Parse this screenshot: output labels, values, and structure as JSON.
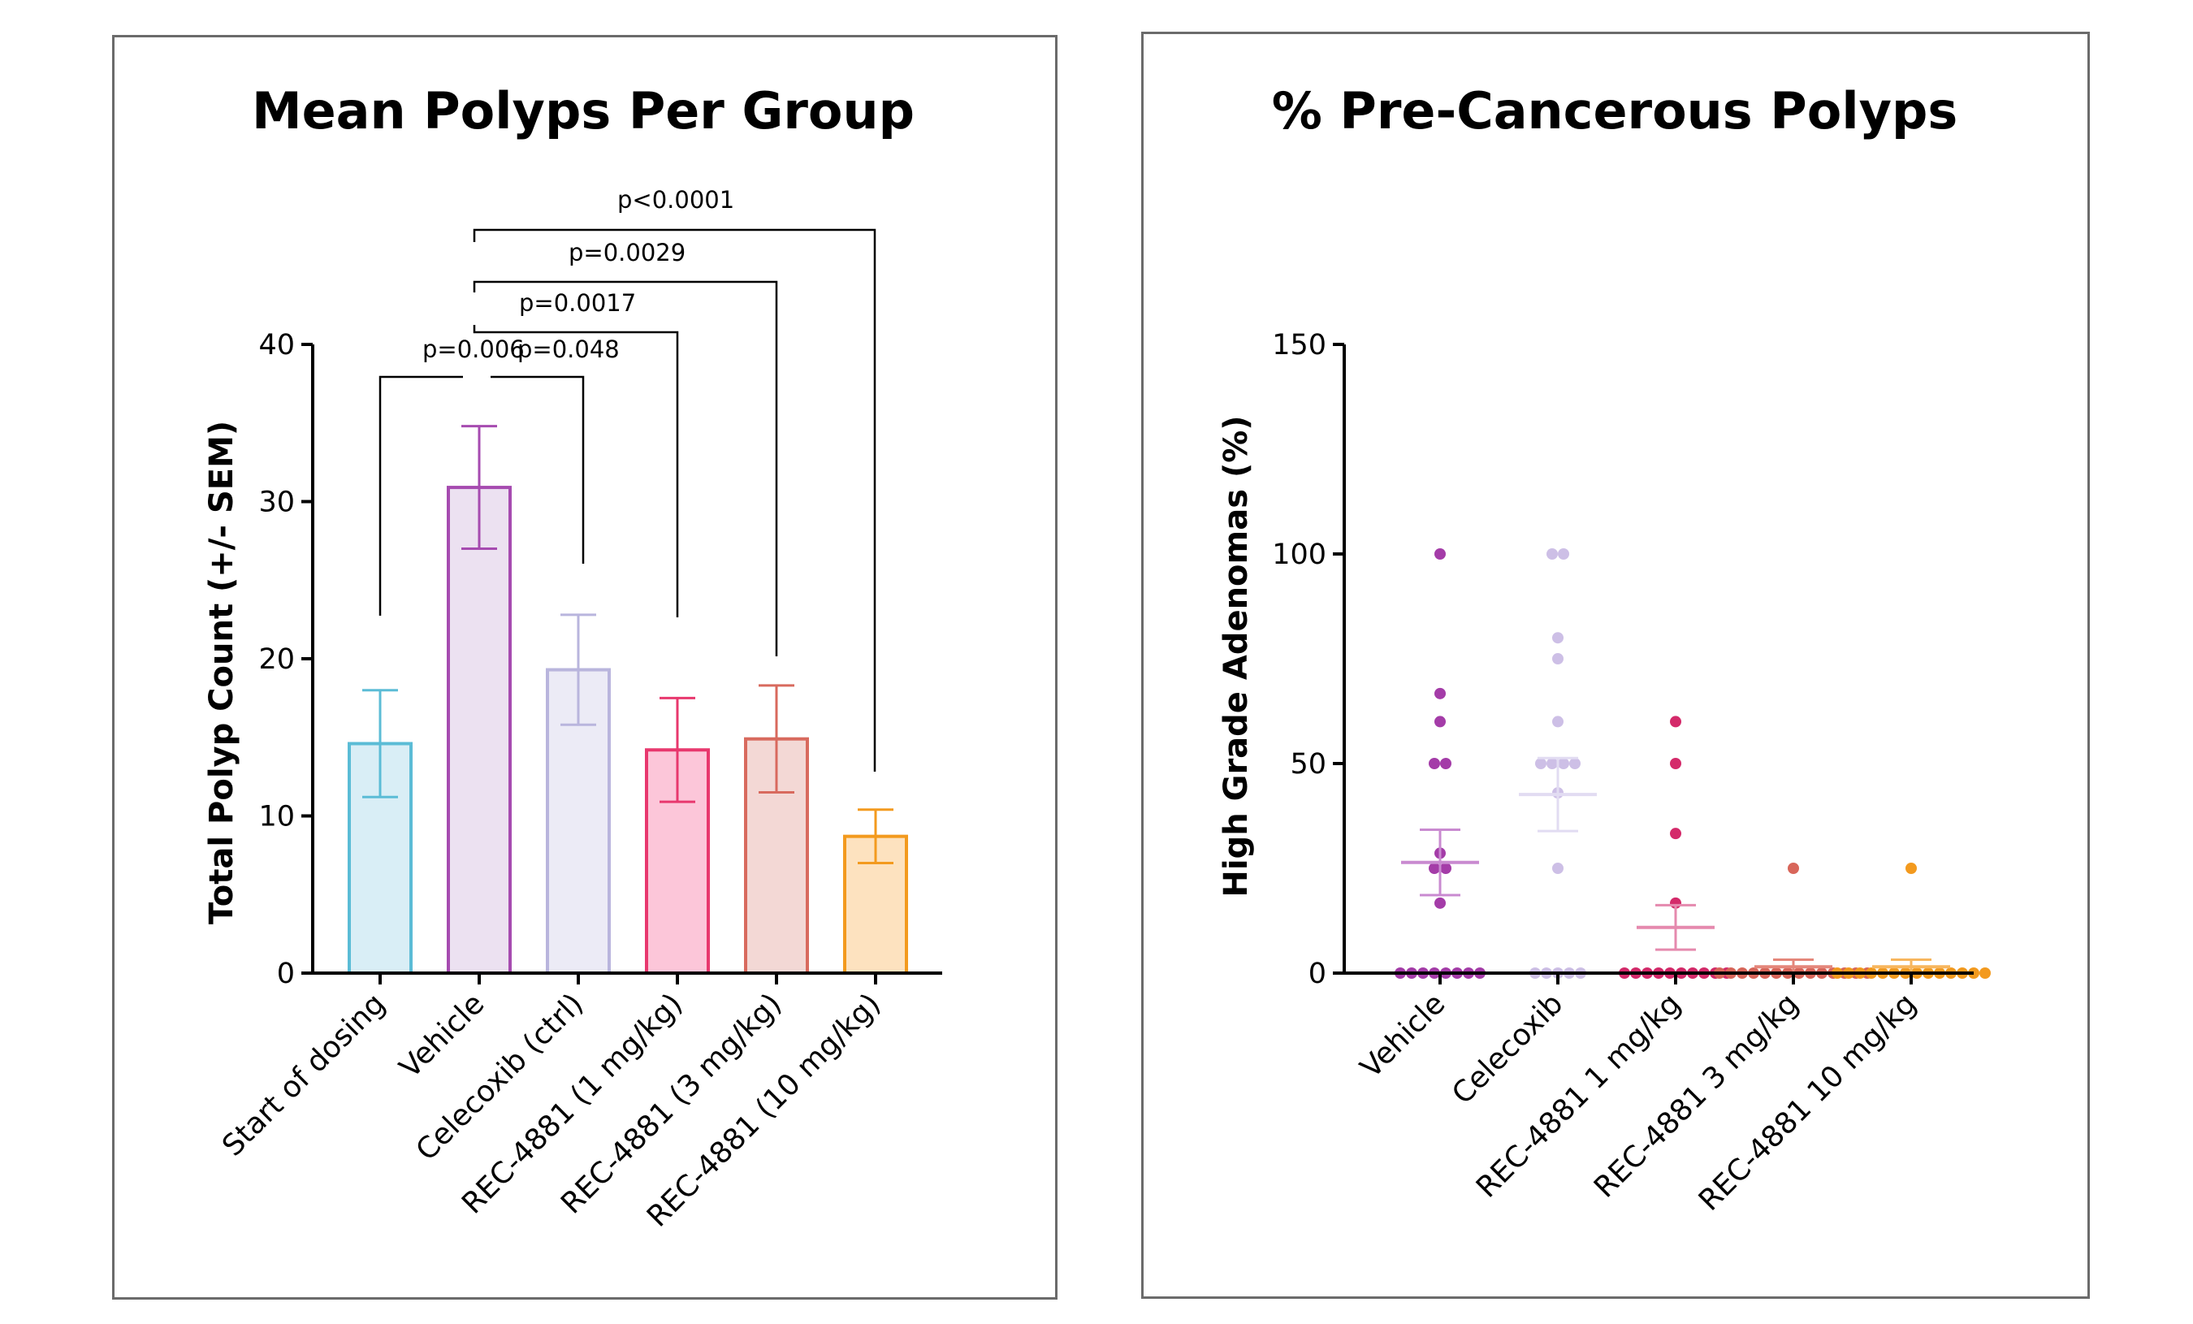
{
  "chart_data": [
    {
      "type": "bar",
      "title": "Mean Polyps Per Group",
      "xlabel": "",
      "ylabel": "Total Polyp Count (+/- SEM)",
      "ylim": [
        0,
        40
      ],
      "yticks": [
        0,
        10,
        20,
        30,
        40
      ],
      "categories": [
        "Start of dosing",
        "Vehicle",
        "Celecoxib (ctrl)",
        "REC-4881 (1 mg/kg)",
        "REC-4881 (3 mg/kg)",
        "REC-4881 (10 mg/kg)"
      ],
      "values": [
        14.6,
        30.9,
        19.3,
        14.2,
        14.9,
        8.7
      ],
      "sem": [
        3.4,
        3.9,
        3.5,
        3.3,
        3.4,
        1.7
      ],
      "colors": [
        "#5bbcd6",
        "#a64bb0",
        "#b9b5dd",
        "#e8386e",
        "#d86a5e",
        "#f39a1e"
      ],
      "fills": [
        "#d9eef6",
        "#ece1f1",
        "#ecebf6",
        "#fcc6d9",
        "#f3d8d5",
        "#fde2bf"
      ],
      "comparisons": [
        {
          "from": 0,
          "to": 1,
          "label": "p=0.006"
        },
        {
          "from": 1,
          "to": 2,
          "label": "p=0.048"
        },
        {
          "from": 1,
          "to": 3,
          "label": "p=0.0017"
        },
        {
          "from": 1,
          "to": 4,
          "label": "p=0.0029"
        },
        {
          "from": 1,
          "to": 5,
          "label": "p<0.0001"
        }
      ]
    },
    {
      "type": "scatter",
      "title": "% Pre-Cancerous Polyps",
      "xlabel": "",
      "ylabel": "High Grade Adenomas (%)",
      "ylim": [
        0,
        150
      ],
      "yticks": [
        0,
        50,
        100,
        150
      ],
      "categories": [
        "Vehicle",
        "Celecoxib",
        "REC-4881 1 mg/kg",
        "REC-4881 3 mg/kg",
        "REC-4881 10 mg/kg"
      ],
      "colors": [
        "#a43ca8",
        "#cdbfe6",
        "#d42a6a",
        "#d8665a",
        "#f39a1e"
      ],
      "mean_colors": [
        "#c98ad0",
        "#e2dcf2",
        "#e58aae",
        "#e4877b",
        "#f7b65e"
      ],
      "means": [
        26.4,
        42.6,
        10.9,
        1.5,
        1.5
      ],
      "sem": [
        7.8,
        8.7,
        5.3,
        1.7,
        1.7
      ],
      "series": [
        {
          "name": "Vehicle",
          "values": [
            100,
            66.7,
            60,
            50,
            50,
            28.6,
            25,
            25,
            16.7,
            0,
            0,
            0,
            0,
            0,
            0,
            0,
            0
          ]
        },
        {
          "name": "Celecoxib",
          "values": [
            100,
            100,
            80,
            75,
            60,
            50,
            50,
            50,
            50,
            43,
            25,
            0,
            0,
            0,
            0,
            0
          ]
        },
        {
          "name": "REC-4881 1 mg/kg",
          "values": [
            60,
            50,
            33.3,
            16.7,
            0,
            0,
            0,
            0,
            0,
            0,
            0,
            0,
            0,
            0
          ]
        },
        {
          "name": "REC-4881 3 mg/kg",
          "values": [
            25,
            0,
            0,
            0,
            0,
            0,
            0,
            0,
            0,
            0,
            0,
            0,
            0,
            0,
            0
          ]
        },
        {
          "name": "REC-4881 10 mg/kg",
          "values": [
            25,
            0,
            0,
            0,
            0,
            0,
            0,
            0,
            0,
            0,
            0,
            0,
            0,
            0,
            0
          ]
        }
      ]
    }
  ]
}
